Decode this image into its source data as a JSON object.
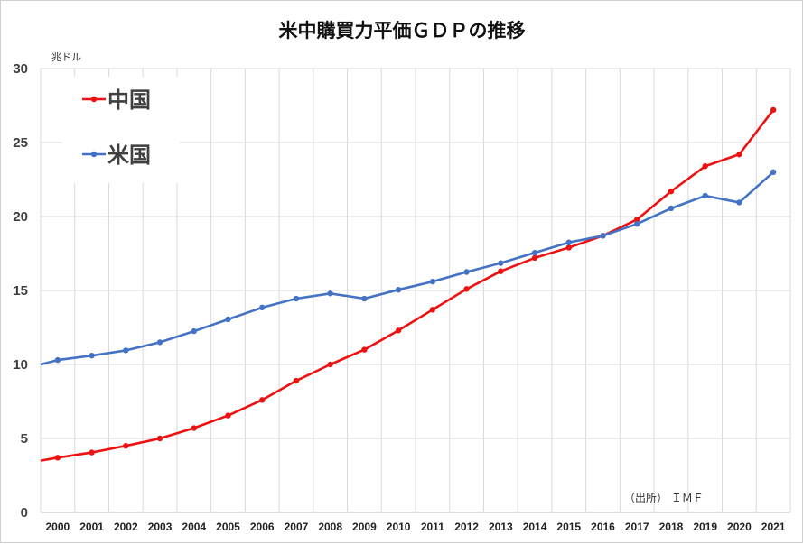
{
  "chart_data": {
    "type": "line",
    "title": "米中購買力平価ＧＤＰの推移",
    "ylabel": "兆ドル",
    "xlabel": "",
    "ylim": [
      0,
      30
    ],
    "yticks": [
      0,
      5,
      10,
      15,
      20,
      25,
      30
    ],
    "grid": true,
    "legend_position": "top-left",
    "source_note": "（出所） ＩＭＦ",
    "categories": [
      "2000",
      "2001",
      "2002",
      "2003",
      "2004",
      "2005",
      "2006",
      "2007",
      "2008",
      "2009",
      "2010",
      "2011",
      "2012",
      "2013",
      "2014",
      "2015",
      "2016",
      "2017",
      "2018",
      "2019",
      "2020",
      "2021"
    ],
    "series": [
      {
        "name": "中国",
        "color": "#ee1111",
        "start_value": 3.5,
        "values": [
          3.7,
          4.05,
          4.5,
          5.0,
          5.7,
          6.55,
          7.6,
          8.9,
          10.0,
          11.0,
          12.3,
          13.7,
          15.1,
          16.3,
          17.2,
          17.9,
          18.7,
          19.8,
          21.7,
          23.4,
          24.2,
          27.2
        ]
      },
      {
        "name": "米国",
        "color": "#4472c4",
        "start_value": 10.0,
        "values": [
          10.3,
          10.6,
          10.95,
          11.5,
          12.25,
          13.05,
          13.85,
          14.45,
          14.8,
          14.45,
          15.05,
          15.6,
          16.25,
          16.85,
          17.55,
          18.25,
          18.7,
          19.5,
          20.55,
          21.4,
          20.95,
          23.0
        ]
      }
    ]
  }
}
